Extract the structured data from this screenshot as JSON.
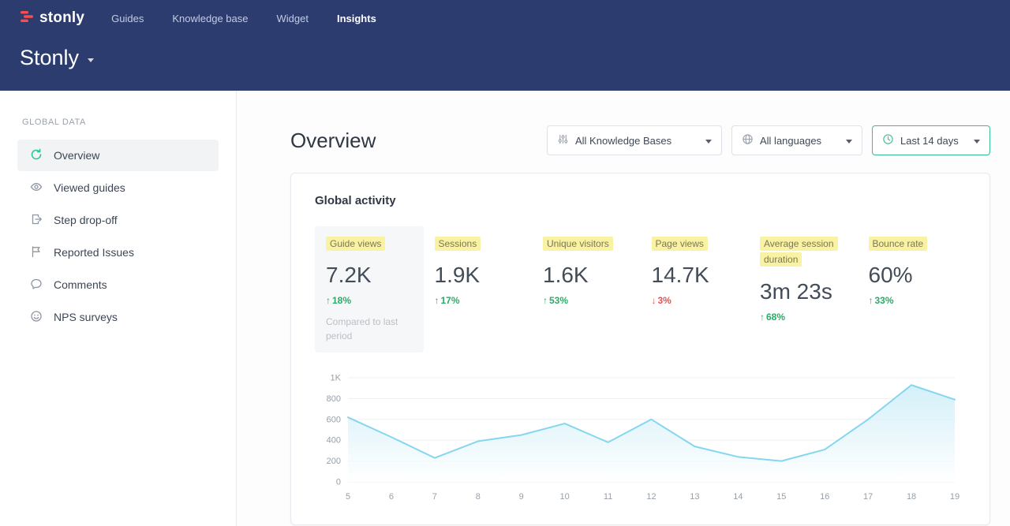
{
  "colors": {
    "header_bg": "#2c3c6f",
    "brand_red": "#fb4b4b",
    "accent_teal": "#35c08e",
    "highlight_yellow": "#f9f2a2",
    "positive_green": "#2bab66",
    "negative_red": "#e25353",
    "chart_line": "#85d6ef"
  },
  "topnav": {
    "logo_text": "stonly",
    "items": [
      {
        "label": "Guides"
      },
      {
        "label": "Knowledge base"
      },
      {
        "label": "Widget"
      },
      {
        "label": "Insights"
      }
    ],
    "workspace_title": "Stonly"
  },
  "sidebar": {
    "section_label": "GLOBAL DATA",
    "items": [
      {
        "label": "Overview",
        "icon": "refresh-icon"
      },
      {
        "label": "Viewed guides",
        "icon": "eye-icon"
      },
      {
        "label": "Step drop-off",
        "icon": "step-dropoff-icon"
      },
      {
        "label": "Reported Issues",
        "icon": "flag-icon"
      },
      {
        "label": "Comments",
        "icon": "comment-icon"
      },
      {
        "label": "NPS surveys",
        "icon": "smiley-icon"
      }
    ]
  },
  "main": {
    "page_title": "Overview",
    "filters": [
      {
        "label": "All Knowledge Bases",
        "icon": "sliders-icon"
      },
      {
        "label": "All languages",
        "icon": "globe-icon"
      },
      {
        "label": "Last 14 days",
        "icon": "clock-icon"
      }
    ],
    "card": {
      "title": "Global activity",
      "metrics": [
        {
          "label": "Guide views",
          "value": "7.2K",
          "arrow": "↑",
          "delta": "18%",
          "dir": "up",
          "note": "Compared to last period",
          "selected": true
        },
        {
          "label": "Sessions",
          "value": "1.9K",
          "arrow": "↑",
          "delta": "17%",
          "dir": "up"
        },
        {
          "label": "Unique visitors",
          "value": "1.6K",
          "arrow": "↑",
          "delta": "53%",
          "dir": "up"
        },
        {
          "label": "Page views",
          "value": "14.7K",
          "arrow": "↓",
          "delta": "3%",
          "dir": "down"
        },
        {
          "label": "Average session duration",
          "value": "3m 23s",
          "arrow": "↑",
          "delta": "68%",
          "dir": "up"
        },
        {
          "label": "Bounce rate",
          "value": "60%",
          "arrow": "↑",
          "delta": "33%",
          "dir": "up"
        }
      ]
    }
  },
  "chart_data": {
    "type": "area",
    "title": "Global activity",
    "x": [
      5,
      6,
      7,
      8,
      9,
      10,
      11,
      12,
      13,
      14,
      15,
      16,
      17,
      18,
      19
    ],
    "values": [
      620,
      430,
      230,
      390,
      450,
      560,
      380,
      600,
      340,
      240,
      200,
      310,
      600,
      930,
      790
    ],
    "ylim": [
      0,
      1000
    ],
    "yticks": [
      0,
      200,
      400,
      600,
      800,
      1000
    ],
    "ytick_labels": [
      "0",
      "200",
      "400",
      "600",
      "800",
      "1K"
    ],
    "xlabel": "",
    "ylabel": "",
    "grid": true,
    "legend": false,
    "line_color": "#85d6ef",
    "fill_top": "#c9ecf8",
    "fill_bottom": "#ffffff"
  }
}
